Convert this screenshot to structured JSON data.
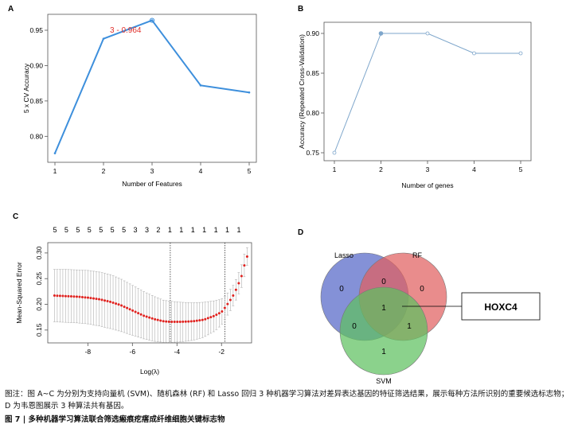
{
  "panels": {
    "a": {
      "letter": "A",
      "chart_data": {
        "type": "line",
        "x": [
          1,
          2,
          3,
          4,
          5
        ],
        "y": [
          0.776,
          0.938,
          0.964,
          0.872,
          0.862
        ],
        "xlabel": "Number of Features",
        "ylabel": "5 x CV Accuracy",
        "xlim": [
          1,
          5
        ],
        "ylim": [
          0.77,
          0.968
        ],
        "yticks": [
          "0.80",
          "0.85",
          "0.90",
          "0.95"
        ],
        "xticks": [
          "1",
          "2",
          "3",
          "4",
          "5"
        ],
        "annotation": "3 - 0.964",
        "line_color": "#3d8fdc",
        "annotation_color": "#e0322e"
      }
    },
    "b": {
      "letter": "B",
      "chart_data": {
        "type": "line",
        "x": [
          1,
          2,
          3,
          4,
          5
        ],
        "y": [
          0.75,
          0.9,
          0.9,
          0.875,
          0.875
        ],
        "xlabel": "Number of genes",
        "ylabel": "Accuracy (Repeated Cross-Validation)",
        "xlim": [
          1,
          5
        ],
        "ylim": [
          0.745,
          0.905
        ],
        "yticks": [
          "0.75",
          "0.80",
          "0.85",
          "0.90"
        ],
        "xticks": [
          "1",
          "2",
          "3",
          "4",
          "5"
        ],
        "line_color": "#7ea6cb"
      }
    },
    "c": {
      "letter": "C",
      "chart_data": {
        "type": "scatter",
        "xlabel": "Log(λ)",
        "ylabel": "Mean-Squared Error",
        "xlim": [
          -9.8,
          -0.65
        ],
        "ylim": [
          0.125,
          0.32
        ],
        "xticks": [
          "-8",
          "-6",
          "-4",
          "-2"
        ],
        "yticks": [
          "0.15",
          "0.20",
          "0.25",
          "0.30"
        ],
        "top_labels": [
          "5",
          "5",
          "5",
          "5",
          "5",
          "5",
          "5",
          "3",
          "3",
          "2",
          "1",
          "1",
          "1",
          "1",
          "1",
          "1",
          "1"
        ],
        "lambda_min": -4.3,
        "lambda_1se": -1.85,
        "point_color": "#e0221f",
        "x": [
          -9.5,
          -9.0,
          -8.5,
          -8.0,
          -7.5,
          -7.0,
          -6.5,
          -6.0,
          -5.5,
          -5.0,
          -4.6,
          -4.3,
          -3.8,
          -3.3,
          -2.8,
          -2.3,
          -2.0,
          -1.8,
          -1.5,
          -1.3,
          -1.1,
          -0.95,
          -0.85
        ],
        "mse": [
          0.217,
          0.216,
          0.215,
          0.213,
          0.21,
          0.205,
          0.198,
          0.188,
          0.178,
          0.171,
          0.167,
          0.166,
          0.166,
          0.167,
          0.17,
          0.178,
          0.185,
          0.196,
          0.215,
          0.233,
          0.255,
          0.28,
          0.293
        ],
        "upper": [
          0.268,
          0.268,
          0.267,
          0.266,
          0.263,
          0.258,
          0.249,
          0.237,
          0.225,
          0.215,
          0.208,
          0.206,
          0.204,
          0.203,
          0.204,
          0.207,
          0.21,
          0.218,
          0.235,
          0.253,
          0.277,
          0.302,
          0.31
        ],
        "lower": [
          0.166,
          0.165,
          0.164,
          0.162,
          0.158,
          0.153,
          0.147,
          0.14,
          0.133,
          0.128,
          0.126,
          0.126,
          0.127,
          0.13,
          0.136,
          0.148,
          0.16,
          0.174,
          0.195,
          0.213,
          0.233,
          0.258,
          0.276
        ]
      }
    },
    "d": {
      "letter": "D",
      "sets": [
        {
          "name": "Lasso",
          "color": "#5566c8"
        },
        {
          "name": "RF",
          "color": "#e06060"
        },
        {
          "name": "SVM",
          "color": "#5ec060"
        }
      ],
      "counts": {
        "lasso_only": "0",
        "rf_only": "0",
        "svm_only": "1",
        "lasso_rf": "0",
        "lasso_svm": "0",
        "rf_svm": "1",
        "all": "1"
      },
      "callout": "HOXC4"
    }
  },
  "caption": {
    "note": "图注：图 A~C 为分别为支持向量机 (SVM)、随机森林 (RF) 和 Lasso 回归 3 种机器学习算法对差异表达基因的特征筛选结果，展示每种方法所识别的重要候选标志物；D 为韦恩图展示 3 种算法共有基因。",
    "title": "图 7 | 多种机器学习算法联合筛选瘢痕疙瘩成纤维细胞关键标志物"
  }
}
